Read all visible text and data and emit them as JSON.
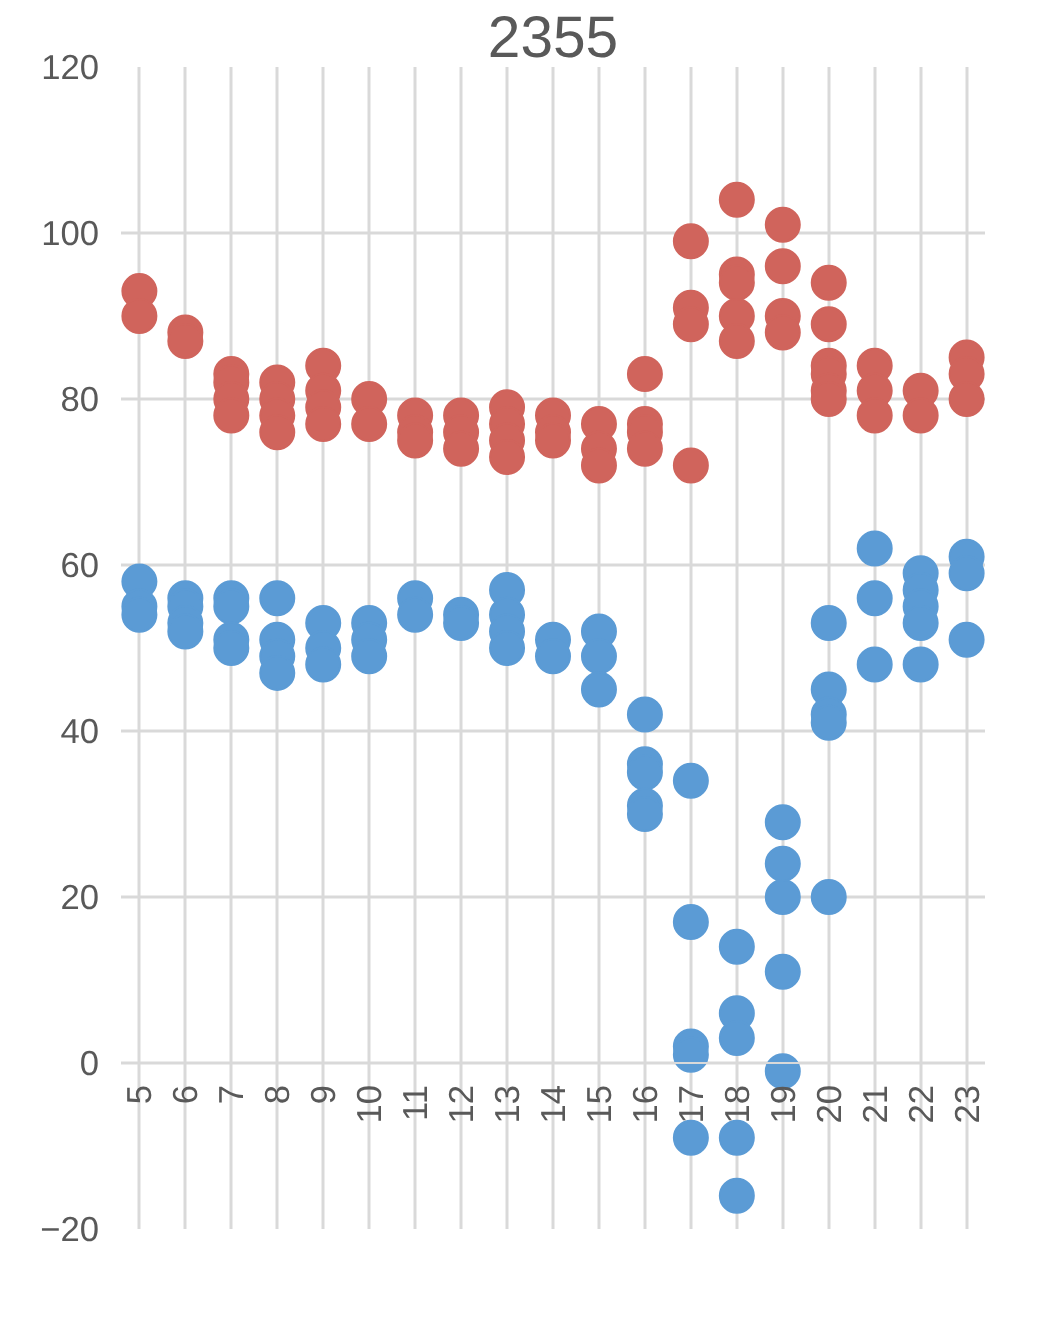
{
  "chart_data": {
    "type": "scatter",
    "title": "2355",
    "xlim": [
      4.6,
      23.4
    ],
    "xticks": [
      5,
      6,
      7,
      8,
      9,
      10,
      11,
      12,
      13,
      14,
      15,
      16,
      17,
      18,
      19,
      20,
      21,
      22,
      23
    ],
    "ylim": [
      -20,
      120
    ],
    "yticks": [
      -20,
      0,
      20,
      40,
      60,
      80,
      100,
      120
    ],
    "grid": true,
    "marker": "circle",
    "series": [
      {
        "color": "#d0645c",
        "x": [
          5,
          5,
          6,
          6,
          7,
          7,
          7,
          7,
          8,
          8,
          8,
          8,
          9,
          9,
          9,
          9,
          10,
          10,
          11,
          11,
          11,
          12,
          12,
          12,
          13,
          13,
          13,
          13,
          14,
          14,
          14,
          15,
          15,
          15,
          16,
          16,
          16,
          16,
          17,
          17,
          17,
          17,
          18,
          18,
          18,
          18,
          18,
          19,
          19,
          19,
          19,
          20,
          20,
          20,
          20,
          20,
          20,
          21,
          21,
          21,
          22,
          22,
          23,
          23,
          23
        ],
        "values": [
          93,
          90,
          88,
          87,
          83,
          82,
          80,
          78,
          82,
          80,
          78,
          76,
          84,
          81,
          79,
          77,
          80,
          77,
          78,
          76,
          75,
          78,
          76,
          74,
          79,
          77,
          75,
          73,
          78,
          76,
          75,
          77,
          74,
          72,
          83,
          77,
          76,
          74,
          99,
          91,
          89,
          72,
          104,
          95,
          94,
          90,
          87,
          101,
          96,
          90,
          88,
          94,
          89,
          84,
          83,
          81,
          80,
          84,
          81,
          78,
          81,
          78,
          85,
          83,
          80
        ]
      },
      {
        "color": "#5b9bd5",
        "x": [
          5,
          5,
          5,
          6,
          6,
          6,
          6,
          7,
          7,
          7,
          7,
          8,
          8,
          8,
          8,
          9,
          9,
          9,
          10,
          10,
          10,
          11,
          11,
          12,
          12,
          13,
          13,
          13,
          13,
          14,
          14,
          15,
          15,
          15,
          16,
          16,
          16,
          16,
          16,
          17,
          17,
          17,
          17,
          17,
          18,
          18,
          18,
          18,
          18,
          19,
          19,
          19,
          19,
          19,
          20,
          20,
          20,
          20,
          20,
          21,
          21,
          21,
          22,
          22,
          22,
          22,
          22,
          23,
          23,
          23
        ],
        "values": [
          58,
          55,
          54,
          56,
          55,
          53,
          52,
          56,
          55,
          51,
          50,
          56,
          51,
          49,
          47,
          53,
          50,
          48,
          53,
          51,
          49,
          56,
          54,
          54,
          53,
          57,
          54,
          52,
          50,
          51,
          49,
          52,
          49,
          45,
          42,
          36,
          35,
          31,
          30,
          34,
          17,
          2,
          1,
          -9,
          14,
          6,
          3,
          -9,
          -16,
          29,
          24,
          20,
          11,
          -1,
          53,
          45,
          42,
          41,
          20,
          62,
          56,
          48,
          59,
          57,
          55,
          53,
          48,
          61,
          59,
          51
        ]
      }
    ]
  }
}
